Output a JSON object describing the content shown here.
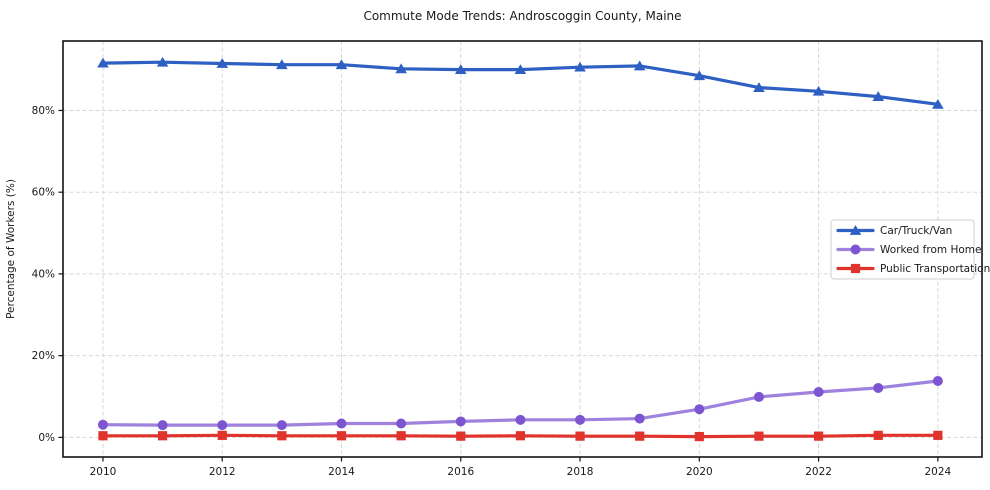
{
  "chart_data": {
    "type": "line",
    "title": "Commute Mode Trends: Androscoggin County, Maine",
    "xlabel": "",
    "ylabel": "Percentage of Workers (%)",
    "x": [
      2010,
      2011,
      2012,
      2013,
      2014,
      2015,
      2016,
      2017,
      2018,
      2019,
      2020,
      2021,
      2022,
      2023,
      2024
    ],
    "series": [
      {
        "name": "Car/Truck/Van",
        "marker": "triangle",
        "line_color": "#2e5fc3",
        "marker_color": "#2e5fc3",
        "values": [
          91.6,
          91.8,
          91.5,
          91.2,
          91.2,
          90.2,
          90.0,
          90.0,
          90.6,
          90.9,
          88.5,
          85.6,
          84.7,
          83.4,
          81.5
        ]
      },
      {
        "name": "Worked from Home",
        "marker": "circle",
        "line_color": "#9e82de",
        "marker_color": "#7d55d0",
        "values": [
          3.1,
          3.0,
          3.0,
          3.0,
          3.4,
          3.4,
          3.9,
          4.3,
          4.3,
          4.6,
          6.9,
          9.9,
          11.1,
          12.1,
          13.8
        ]
      },
      {
        "name": "Public Transportation",
        "marker": "square",
        "line_color": "#df332b",
        "marker_color": "#df332b",
        "values": [
          0.4,
          0.4,
          0.5,
          0.4,
          0.4,
          0.4,
          0.3,
          0.4,
          0.3,
          0.3,
          0.2,
          0.3,
          0.3,
          0.5,
          0.5
        ]
      }
    ],
    "xticks": [
      2010,
      2012,
      2014,
      2016,
      2018,
      2020,
      2022,
      2024
    ],
    "xtick_labels": [
      "2010",
      "2012",
      "2014",
      "2016",
      "2018",
      "2020",
      "2022",
      "2024"
    ],
    "yticks": [
      0,
      20,
      40,
      60,
      80
    ],
    "ytick_labels": [
      "0%",
      "20%",
      "40%",
      "60%",
      "80%"
    ],
    "xlim": [
      2009.33,
      2024.74
    ],
    "ylim": [
      -4.8,
      97.0
    ],
    "grid": true,
    "grid_style": "dashed",
    "legend_position": "center-right",
    "colors": {
      "grid": "#d7d7d7",
      "spine": "#141414",
      "text": "#1a1a1a",
      "legend_border": "#cfcfcf",
      "legend_bg": "#ffffff"
    }
  }
}
